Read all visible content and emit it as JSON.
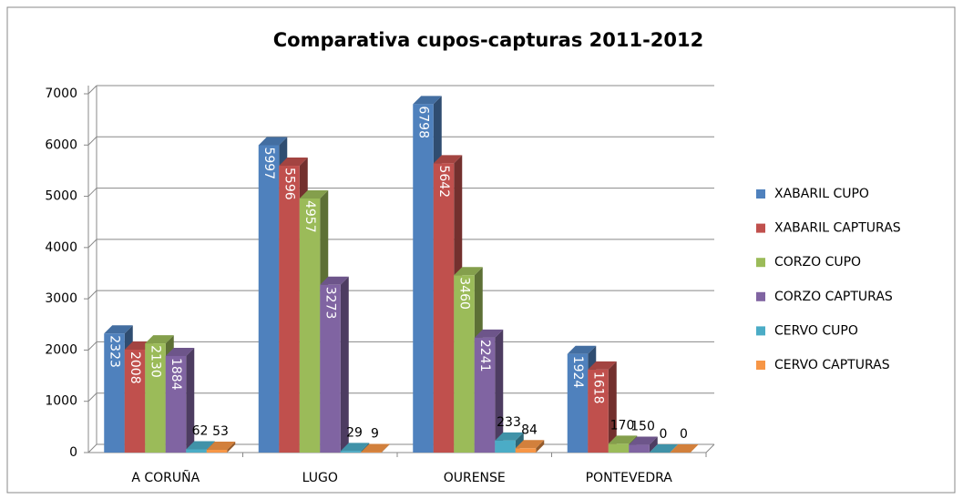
{
  "chart_data": {
    "type": "bar3d",
    "title": "Comparativa cupos-capturas 2011-2012",
    "categories": [
      "A CORUÑA",
      "LUGO",
      "OURENSE",
      "PONTEVEDRA"
    ],
    "series": [
      {
        "name": "XABARIL CUPO",
        "color": "#4f81bd",
        "values": [
          2323,
          5997,
          6798,
          1924
        ]
      },
      {
        "name": "XABARIL CAPTURAS",
        "color": "#c0504d",
        "values": [
          2008,
          5596,
          5642,
          1618
        ]
      },
      {
        "name": "CORZO CUPO",
        "color": "#9bbb59",
        "values": [
          2130,
          4957,
          3460,
          170
        ]
      },
      {
        "name": "CORZO CAPTURAS",
        "color": "#8064a2",
        "values": [
          1884,
          3273,
          2241,
          150
        ]
      },
      {
        "name": "CERVO CUPO",
        "color": "#4bacc6",
        "values": [
          62,
          29,
          233,
          0
        ]
      },
      {
        "name": "CERVO CAPTURAS",
        "color": "#f79646",
        "values": [
          53,
          9,
          84,
          0
        ]
      }
    ],
    "ylim": [
      0,
      7000
    ],
    "yticks": [
      0,
      1000,
      2000,
      3000,
      4000,
      5000,
      6000,
      7000
    ],
    "grid": true,
    "legend": "right"
  }
}
